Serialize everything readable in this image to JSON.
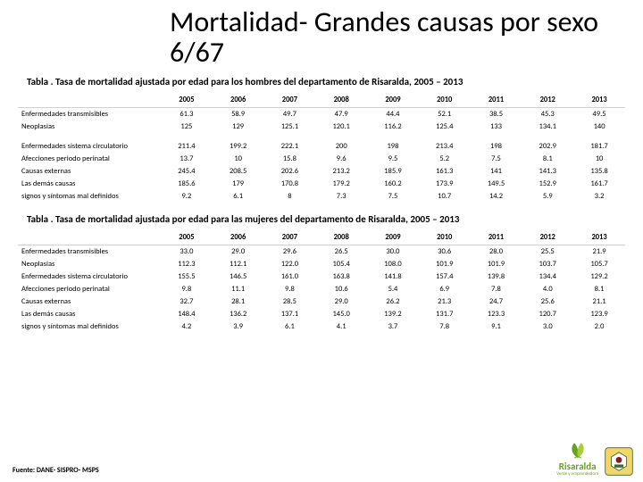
{
  "title": "Mortalidad- Grandes causas por sexo 6/67",
  "subtitle_m": "Tabla . Tasa de mortalidad ajustada por edad para los hombres del departamento de Risaralda, 2005 – 2013",
  "subtitle_f": "Tabla . Tasa de mortalidad ajustada por edad para las mujeres del departamento de Risaralda, 2005 – 2013",
  "years": [
    "2005",
    "2006",
    "2007",
    "2008",
    "2009",
    "2010",
    "2011",
    "2012",
    "2013"
  ],
  "men": {
    "block1": [
      {
        "label": "Enfermedades transmisibles",
        "v": [
          "61.3",
          "58.9",
          "49.7",
          "47.9",
          "44.4",
          "52.1",
          "38.5",
          "45.3",
          "49.5"
        ]
      },
      {
        "label": "Neoplasias",
        "v": [
          "125",
          "129",
          "125.1",
          "120.1",
          "116.2",
          "125.4",
          "133",
          "134.1",
          "140"
        ]
      }
    ],
    "block2": [
      {
        "label": "Enfermedades sistema circulatorio",
        "v": [
          "211.4",
          "199.2",
          "222.1",
          "200",
          "198",
          "213.4",
          "198",
          "202.9",
          "181.7"
        ]
      },
      {
        "label": "Afecciones periodo perinatal",
        "v": [
          "13.7",
          "10",
          "15.8",
          "9.6",
          "9.5",
          "5.2",
          "7.5",
          "8.1",
          "10"
        ]
      },
      {
        "label": "Causas externas",
        "v": [
          "245.4",
          "208.5",
          "202.6",
          "213.2",
          "185.9",
          "161.3",
          "141",
          "141.3",
          "135.8"
        ]
      },
      {
        "label": "Las demás causas",
        "v": [
          "185.6",
          "179",
          "170.8",
          "179.2",
          "160.2",
          "173.9",
          "149.5",
          "152.9",
          "161.7"
        ]
      },
      {
        "label": "signos y síntomas mal definidos",
        "v": [
          "9.2",
          "6.1",
          "8",
          "7.3",
          "7.5",
          "10.7",
          "14.2",
          "5.9",
          "3.2"
        ]
      }
    ]
  },
  "women": {
    "rows": [
      {
        "label": "Enfermedades transmisibles",
        "v": [
          "33.0",
          "29.0",
          "29.6",
          "26.5",
          "30.0",
          "30.6",
          "28.0",
          "25.5",
          "21.9"
        ]
      },
      {
        "label": "Neoplasias",
        "v": [
          "112.3",
          "112.1",
          "122.0",
          "105.4",
          "108.0",
          "101.9",
          "101.9",
          "103.7",
          "105.7"
        ]
      },
      {
        "label": "Enfermedades sistema circulatorio",
        "v": [
          "155.5",
          "146.5",
          "161.0",
          "163.8",
          "141.8",
          "157.4",
          "139.8",
          "134.4",
          "129.2"
        ]
      },
      {
        "label": "Afecciones periodo perinatal",
        "v": [
          "9.8",
          "11.1",
          "9.8",
          "10.6",
          "5.4",
          "6.9",
          "7.8",
          "4.0",
          "8.1"
        ]
      },
      {
        "label": "Causas externas",
        "v": [
          "32.7",
          "28.1",
          "28.5",
          "29.0",
          "26.2",
          "21.3",
          "24.7",
          "25.6",
          "21.1"
        ]
      },
      {
        "label": "Las demás causas",
        "v": [
          "148.4",
          "136.2",
          "137.1",
          "145.0",
          "139.2",
          "131.7",
          "123.3",
          "120.7",
          "123.9"
        ]
      },
      {
        "label": "signos y síntomas mal definidos",
        "v": [
          "4.2",
          "3.9",
          "6.1",
          "4.1",
          "3.7",
          "7.8",
          "9.1",
          "3.0",
          "2.0"
        ]
      }
    ]
  },
  "source": "Fuente: DANE- SISPRO- MSPS",
  "logo_text": "Risaralda",
  "logo_sub": "Verde y emprendedora",
  "colors": {
    "green": "#6aa21f",
    "leaf2": "#a6ce39",
    "gob_bg": "#f2d66b",
    "gob_stroke": "#3a6b2a"
  }
}
